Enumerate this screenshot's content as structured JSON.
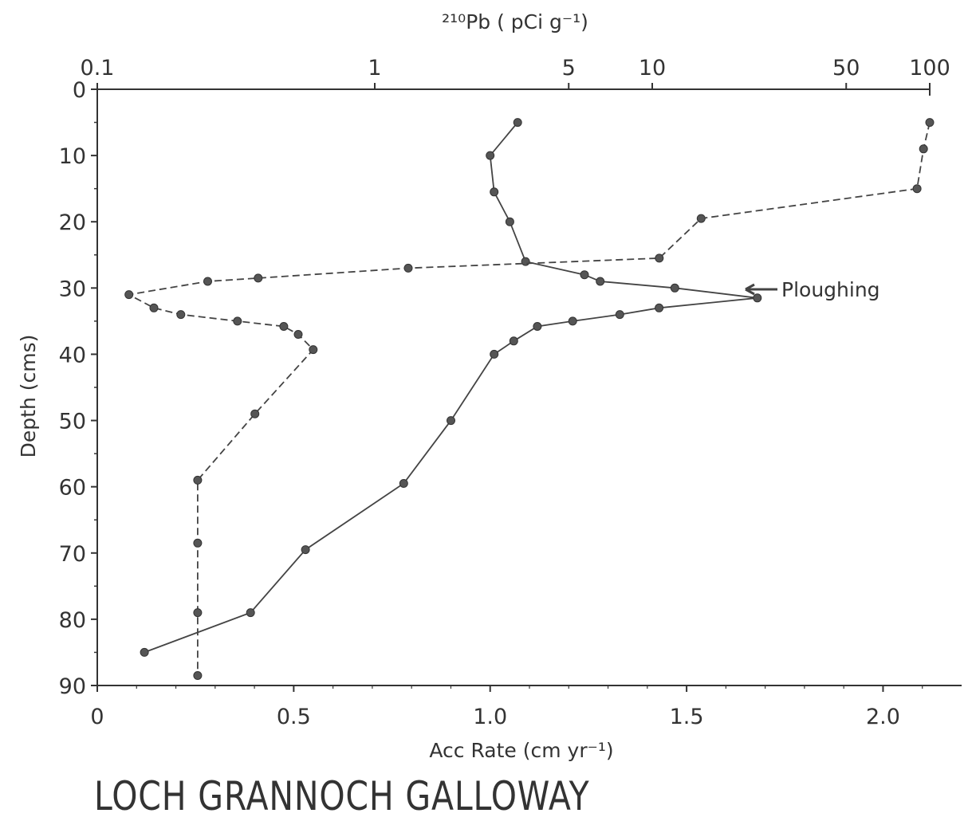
{
  "chart_data": {
    "type": "line",
    "title": "LOCH GRANNOCH GALLOWAY",
    "annotation": "Ploughing",
    "y_axis": {
      "label": "Depth (cms)",
      "range": [
        0,
        90
      ],
      "inverted": true,
      "ticks": [
        "0",
        "10",
        "20",
        "30",
        "40",
        "50",
        "60",
        "70",
        "80",
        "90"
      ]
    },
    "x_axis_bottom": {
      "label": "Acc Rate (cm yr⁻¹)",
      "range": [
        0,
        2.2
      ],
      "ticks": [
        "0",
        "0.5",
        "1.0",
        "1.5",
        "2.0"
      ]
    },
    "x_axis_top": {
      "label": "²¹⁰Pb ( pCi g⁻¹)",
      "scale": "log",
      "range": [
        0.1,
        100
      ],
      "ticks": [
        "0.1",
        "1",
        "5",
        "10",
        "50",
        "100"
      ]
    },
    "series": [
      {
        "axis": "bottom",
        "style": "solid",
        "points": [
          [
            1.07,
            5
          ],
          [
            1.0,
            10
          ],
          [
            1.01,
            15.5
          ],
          [
            1.05,
            20
          ],
          [
            1.09,
            26
          ],
          [
            1.24,
            28
          ],
          [
            1.28,
            29
          ],
          [
            1.47,
            30
          ],
          [
            1.68,
            31.5
          ],
          [
            1.43,
            33
          ],
          [
            1.33,
            34
          ],
          [
            1.21,
            35
          ],
          [
            1.12,
            35.8
          ],
          [
            1.06,
            38
          ],
          [
            1.01,
            40
          ],
          [
            0.9,
            50
          ],
          [
            0.78,
            59.5
          ],
          [
            0.53,
            69.5
          ],
          [
            0.39,
            79
          ],
          [
            0.12,
            85
          ]
        ]
      },
      {
        "axis": "top",
        "style": "dashed",
        "points": [
          [
            100,
            5
          ],
          [
            95,
            9
          ],
          [
            90,
            15
          ],
          [
            15,
            19.5
          ],
          [
            10.6,
            25.5
          ],
          [
            1.32,
            27
          ],
          [
            0.38,
            28.5
          ],
          [
            0.25,
            29
          ],
          [
            0.13,
            31
          ],
          [
            0.16,
            33
          ],
          [
            0.2,
            34
          ],
          [
            0.32,
            35
          ],
          [
            0.47,
            35.8
          ],
          [
            0.53,
            37
          ],
          [
            0.6,
            39.3
          ],
          [
            0.37,
            49
          ],
          [
            0.23,
            59
          ],
          [
            0.23,
            68.5
          ],
          [
            0.23,
            79
          ],
          [
            0.23,
            88.5
          ]
        ]
      }
    ]
  }
}
